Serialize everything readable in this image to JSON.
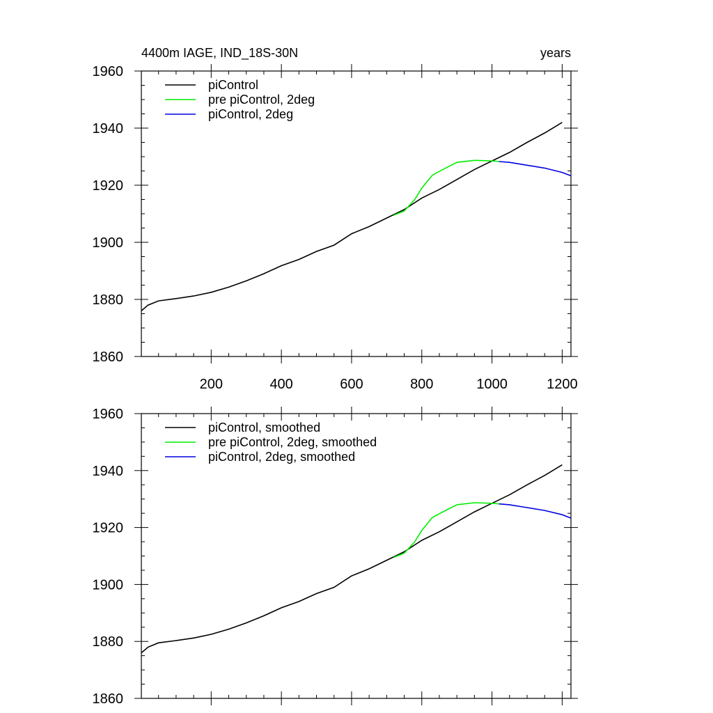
{
  "chart_data": [
    {
      "type": "line",
      "title_left": "4400m IAGE, IND_18S-30N",
      "title_right": "years",
      "xlim": [
        1,
        1225
      ],
      "ylim": [
        1860,
        1960
      ],
      "x_ticks": [
        200,
        400,
        600,
        800,
        1000,
        1200
      ],
      "y_ticks": [
        1860,
        1880,
        1900,
        1920,
        1940,
        1960
      ],
      "show_x_tick_labels": true,
      "legend_position": "top-left",
      "series": [
        {
          "name": "piControl",
          "color": "#000000",
          "points": [
            [
              1,
              1876
            ],
            [
              20,
              1878
            ],
            [
              50,
              1879.5
            ],
            [
              100,
              1880.3
            ],
            [
              150,
              1881.2
            ],
            [
              200,
              1882.5
            ],
            [
              250,
              1884.3
            ],
            [
              300,
              1886.5
            ],
            [
              350,
              1889
            ],
            [
              400,
              1891.8
            ],
            [
              450,
              1894
            ],
            [
              500,
              1896.8
            ],
            [
              550,
              1899
            ],
            [
              600,
              1903
            ],
            [
              650,
              1905.5
            ],
            [
              700,
              1908.5
            ],
            [
              750,
              1911.5
            ],
            [
              800,
              1915.5
            ],
            [
              850,
              1918.5
            ],
            [
              900,
              1922
            ],
            [
              950,
              1925.5
            ],
            [
              1000,
              1928.5
            ],
            [
              1050,
              1931.5
            ],
            [
              1100,
              1935
            ],
            [
              1150,
              1938.3
            ],
            [
              1200,
              1942
            ]
          ]
        },
        {
          "name": "pre piControl, 2deg",
          "color": "#00ee00",
          "points": [
            [
              720,
              1909.5
            ],
            [
              750,
              1911
            ],
            [
              780,
              1915
            ],
            [
              800,
              1919
            ],
            [
              830,
              1923.5
            ],
            [
              860,
              1925.5
            ],
            [
              900,
              1928
            ],
            [
              950,
              1928.7
            ],
            [
              1000,
              1928.5
            ],
            [
              1020,
              1928.3
            ]
          ]
        },
        {
          "name": "piControl, 2deg",
          "color": "#0000dd",
          "points": [
            [
              1020,
              1928.3
            ],
            [
              1050,
              1928
            ],
            [
              1100,
              1927
            ],
            [
              1150,
              1926
            ],
            [
              1200,
              1924.5
            ],
            [
              1225,
              1923.3
            ]
          ]
        }
      ]
    },
    {
      "type": "line",
      "xlim": [
        1,
        1225
      ],
      "ylim": [
        1860,
        1960
      ],
      "x_ticks": [
        200,
        400,
        600,
        800,
        1000,
        1200
      ],
      "y_ticks": [
        1860,
        1880,
        1900,
        1920,
        1940,
        1960
      ],
      "show_x_tick_labels": false,
      "legend_position": "top-left",
      "series": [
        {
          "name": "piControl, smoothed",
          "color": "#000000",
          "points": [
            [
              1,
              1876
            ],
            [
              20,
              1878
            ],
            [
              50,
              1879.5
            ],
            [
              100,
              1880.3
            ],
            [
              150,
              1881.2
            ],
            [
              200,
              1882.5
            ],
            [
              250,
              1884.3
            ],
            [
              300,
              1886.5
            ],
            [
              350,
              1889
            ],
            [
              400,
              1891.8
            ],
            [
              450,
              1894
            ],
            [
              500,
              1896.8
            ],
            [
              550,
              1899
            ],
            [
              600,
              1903
            ],
            [
              650,
              1905.5
            ],
            [
              700,
              1908.5
            ],
            [
              750,
              1911.5
            ],
            [
              800,
              1915.5
            ],
            [
              850,
              1918.5
            ],
            [
              900,
              1922
            ],
            [
              950,
              1925.5
            ],
            [
              1000,
              1928.5
            ],
            [
              1050,
              1931.5
            ],
            [
              1100,
              1935
            ],
            [
              1150,
              1938.3
            ],
            [
              1200,
              1942
            ]
          ]
        },
        {
          "name": "pre piControl, 2deg, smoothed",
          "color": "#00ee00",
          "points": [
            [
              720,
              1909.5
            ],
            [
              750,
              1911
            ],
            [
              780,
              1915
            ],
            [
              800,
              1919
            ],
            [
              830,
              1923.5
            ],
            [
              860,
              1925.5
            ],
            [
              900,
              1928
            ],
            [
              950,
              1928.7
            ],
            [
              1000,
              1928.5
            ],
            [
              1020,
              1928.3
            ]
          ]
        },
        {
          "name": "piControl, 2deg, smoothed",
          "color": "#0000dd",
          "points": [
            [
              1020,
              1928.3
            ],
            [
              1050,
              1928
            ],
            [
              1100,
              1927
            ],
            [
              1150,
              1926
            ],
            [
              1200,
              1924.5
            ],
            [
              1225,
              1923.3
            ]
          ]
        }
      ]
    }
  ]
}
